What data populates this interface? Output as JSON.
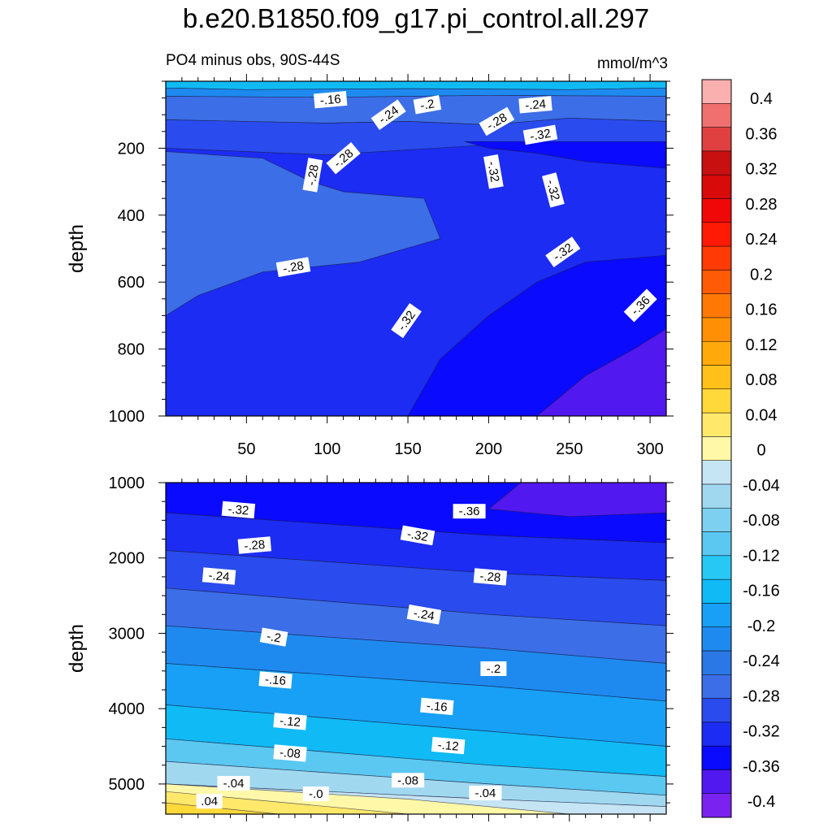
{
  "title": "b.e20.B1850.f09_g17.pi_control.all.297",
  "subtitle": "PO4 minus obs, 90S-44S",
  "units": "mmol/m^3",
  "colorbar": {
    "levels": [
      -0.4,
      -0.36,
      -0.32,
      -0.28,
      -0.24,
      -0.2,
      -0.16,
      -0.12,
      -0.08,
      -0.04,
      0,
      0.04,
      0.08,
      0.12,
      0.16,
      0.2,
      0.24,
      0.28,
      0.32,
      0.36,
      0.4
    ],
    "tick_labels": [
      "-0.4",
      "-0.36",
      "-0.32",
      "-0.28",
      "-0.24",
      "-0.2",
      "-0.16",
      "-0.12",
      "-0.08",
      "-0.04",
      "0",
      "0.04",
      "0.08",
      "0.12",
      "0.16",
      "0.2",
      "0.24",
      "0.28",
      "0.32",
      "0.36",
      "0.4"
    ],
    "colors": [
      "#7a22f0",
      "#5218f0",
      "#0a0aff",
      "#1c2cf2",
      "#2a4bed",
      "#3c6ee8",
      "#2a78e6",
      "#1e8af0",
      "#17a0f5",
      "#10baf5",
      "#28c8f5",
      "#5ac8f0",
      "#7ed0f0",
      "#a0d8f0",
      "#c5e4f4",
      "#fff8a8",
      "#ffe86a",
      "#ffd83a",
      "#ffc01a",
      "#ffaa0a",
      "#ff9005",
      "#ff7805",
      "#ff5a05",
      "#ff3a05",
      "#ff1a05",
      "#f00808",
      "#d80a0a",
      "#c81010",
      "#e04040",
      "#f07070",
      "#fbb0b0"
    ]
  },
  "chart_data": [
    {
      "type": "heatmap",
      "panel": "upper",
      "xlabel": "",
      "ylabel": "depth",
      "xlim": [
        0,
        310
      ],
      "ylim": [
        1000,
        0
      ],
      "x_ticks": [
        50,
        100,
        150,
        200,
        250,
        300
      ],
      "x_tick_labels": [
        "50",
        "100",
        "150",
        "200",
        "250",
        "300"
      ],
      "y_ticks": [
        200,
        400,
        600,
        800,
        1000
      ],
      "y_tick_labels": [
        "200",
        "400",
        "600",
        "800",
        "1000"
      ],
      "regions": [
        {
          "level": -0.16,
          "color": "#10baf5",
          "poly": [
            [
              0,
              0
            ],
            [
              310,
              0
            ],
            [
              310,
              20
            ],
            [
              250,
              25
            ],
            [
              150,
              22
            ],
            [
              50,
              25
            ],
            [
              0,
              20
            ]
          ]
        },
        {
          "level": -0.2,
          "color": "#1e8af0",
          "poly": [
            [
              0,
              20
            ],
            [
              50,
              25
            ],
            [
              150,
              22
            ],
            [
              250,
              25
            ],
            [
              310,
              20
            ],
            [
              310,
              45
            ],
            [
              200,
              42
            ],
            [
              100,
              48
            ],
            [
              0,
              45
            ]
          ]
        },
        {
          "level": -0.24,
          "color": "#3c6ee8",
          "poly": [
            [
              0,
              45
            ],
            [
              100,
              48
            ],
            [
              200,
              42
            ],
            [
              310,
              45
            ],
            [
              310,
              120
            ],
            [
              250,
              110
            ],
            [
              200,
              130
            ],
            [
              150,
              120
            ],
            [
              100,
              125
            ],
            [
              0,
              115
            ]
          ]
        },
        {
          "level": -0.28,
          "color": "#2a4bed",
          "poly": [
            [
              0,
              115
            ],
            [
              100,
              125
            ],
            [
              150,
              120
            ],
            [
              200,
              130
            ],
            [
              250,
              110
            ],
            [
              310,
              120
            ],
            [
              310,
              1000
            ],
            [
              0,
              1000
            ]
          ]
        },
        {
          "level": -0.32,
          "color": "#1c2cf2",
          "poly": [
            [
              0,
              200
            ],
            [
              100,
              220
            ],
            [
              200,
              190
            ],
            [
              310,
              190
            ],
            [
              310,
              1000
            ],
            [
              0,
              1000
            ]
          ]
        },
        {
          "level": -0.32,
          "color": "#3c6ee8",
          "poly": [
            [
              0,
              210
            ],
            [
              60,
              230
            ],
            [
              90,
              300
            ],
            [
              110,
              330
            ],
            [
              160,
              350
            ],
            [
              170,
              470
            ],
            [
              120,
              540
            ],
            [
              60,
              570
            ],
            [
              20,
              640
            ],
            [
              0,
              700
            ]
          ]
        },
        {
          "level": -0.32,
          "color": "#0a0aff",
          "poly": [
            [
              150,
              1000
            ],
            [
              170,
              830
            ],
            [
              200,
              700
            ],
            [
              230,
              600
            ],
            [
              260,
              540
            ],
            [
              310,
              520
            ],
            [
              310,
              1000
            ]
          ]
        },
        {
          "level": -0.32,
          "color": "#0a0aff",
          "poly": [
            [
              185,
              180
            ],
            [
              200,
              200
            ],
            [
              230,
              215
            ],
            [
              260,
              240
            ],
            [
              310,
              260
            ],
            [
              310,
              180
            ]
          ]
        },
        {
          "level": -0.36,
          "color": "#5218f0",
          "poly": [
            [
              230,
              1000
            ],
            [
              260,
              880
            ],
            [
              290,
              800
            ],
            [
              310,
              740
            ],
            [
              310,
              1000
            ]
          ]
        }
      ],
      "contour_labels": [
        {
          "text": "-.16",
          "x": 102,
          "y": 55,
          "angle": -5
        },
        {
          "text": "-.24",
          "x": 138,
          "y": 100,
          "angle": -35
        },
        {
          "text": "-.2",
          "x": 162,
          "y": 70,
          "angle": -10
        },
        {
          "text": "-.28",
          "x": 205,
          "y": 120,
          "angle": -30
        },
        {
          "text": "-.24",
          "x": 229,
          "y": 70,
          "angle": -5
        },
        {
          "text": "-.28",
          "x": 110,
          "y": 230,
          "angle": -40
        },
        {
          "text": "-.32",
          "x": 232,
          "y": 160,
          "angle": -10
        },
        {
          "text": "-.28",
          "x": 91,
          "y": 280,
          "angle": -80
        },
        {
          "text": "-.32",
          "x": 203,
          "y": 270,
          "angle": 80
        },
        {
          "text": "-.32",
          "x": 240,
          "y": 325,
          "angle": 75
        },
        {
          "text": "-.28",
          "x": 79,
          "y": 555,
          "angle": -10
        },
        {
          "text": "-.32",
          "x": 246,
          "y": 510,
          "angle": -35
        },
        {
          "text": "-.32",
          "x": 149,
          "y": 715,
          "angle": -55
        },
        {
          "text": "-.36",
          "x": 294,
          "y": 670,
          "angle": -45
        }
      ]
    },
    {
      "type": "heatmap",
      "panel": "lower",
      "xlabel": "",
      "ylabel": "depth",
      "xlim": [
        0,
        310
      ],
      "ylim": [
        5400,
        1000
      ],
      "y_ticks": [
        1000,
        2000,
        3000,
        4000,
        5000
      ],
      "y_tick_labels": [
        "1000",
        "2000",
        "3000",
        "4000",
        "5000"
      ],
      "regions": [
        {
          "level": -0.36,
          "color": "#0a0aff",
          "poly": [
            [
              0,
              1000
            ],
            [
              310,
              1000
            ],
            [
              310,
              1800
            ],
            [
              200,
              1700
            ],
            [
              0,
              1400
            ]
          ]
        },
        {
          "level": -0.32,
          "color": "#1c2cf2",
          "poly": [
            [
              0,
              1400
            ],
            [
              200,
              1700
            ],
            [
              310,
              1800
            ],
            [
              310,
              2300
            ],
            [
              200,
              2200
            ],
            [
              0,
              1900
            ]
          ]
        },
        {
          "level": -0.28,
          "color": "#2a4bed",
          "poly": [
            [
              0,
              1900
            ],
            [
              200,
              2200
            ],
            [
              310,
              2300
            ],
            [
              310,
              2900
            ],
            [
              200,
              2750
            ],
            [
              0,
              2400
            ]
          ]
        },
        {
          "level": -0.24,
          "color": "#3c6ee8",
          "poly": [
            [
              0,
              2400
            ],
            [
              200,
              2750
            ],
            [
              310,
              2900
            ],
            [
              310,
              3400
            ],
            [
              200,
              3200
            ],
            [
              0,
              2900
            ]
          ]
        },
        {
          "level": -0.2,
          "color": "#1e8af0",
          "poly": [
            [
              0,
              2900
            ],
            [
              200,
              3200
            ],
            [
              310,
              3400
            ],
            [
              310,
              3900
            ],
            [
              200,
              3700
            ],
            [
              0,
              3400
            ]
          ]
        },
        {
          "level": -0.16,
          "color": "#17a0f5",
          "poly": [
            [
              0,
              3400
            ],
            [
              200,
              3700
            ],
            [
              310,
              3900
            ],
            [
              310,
              4500
            ],
            [
              200,
              4300
            ],
            [
              0,
              3950
            ]
          ]
        },
        {
          "level": -0.12,
          "color": "#10baf5",
          "poly": [
            [
              0,
              3950
            ],
            [
              200,
              4300
            ],
            [
              310,
              4500
            ],
            [
              310,
              4900
            ],
            [
              200,
              4750
            ],
            [
              0,
              4400
            ]
          ]
        },
        {
          "level": -0.08,
          "color": "#5ac8f0",
          "poly": [
            [
              0,
              4400
            ],
            [
              200,
              4750
            ],
            [
              310,
              4900
            ],
            [
              310,
              5150
            ],
            [
              200,
              5000
            ],
            [
              0,
              4700
            ]
          ]
        },
        {
          "level": -0.04,
          "color": "#a0d8f0",
          "poly": [
            [
              0,
              4700
            ],
            [
              200,
              5000
            ],
            [
              310,
              5150
            ],
            [
              310,
              5300
            ],
            [
              200,
              5200
            ],
            [
              0,
              5000
            ]
          ]
        },
        {
          "level": 0,
          "color": "#c5e4f4",
          "poly": [
            [
              0,
              5000
            ],
            [
              200,
              5200
            ],
            [
              310,
              5300
            ],
            [
              310,
              5400
            ],
            [
              0,
              5400
            ]
          ]
        },
        {
          "level": 0.04,
          "color": "#fff8a8",
          "poly": [
            [
              0,
              5000
            ],
            [
              150,
              5200
            ],
            [
              250,
              5400
            ],
            [
              0,
              5400
            ]
          ]
        },
        {
          "level": 0.08,
          "color": "#ffe86a",
          "poly": [
            [
              0,
              5100
            ],
            [
              100,
              5300
            ],
            [
              150,
              5400
            ],
            [
              0,
              5400
            ]
          ]
        },
        {
          "level": 0.12,
          "color": "#ffd83a",
          "poly": [
            [
              0,
              5250
            ],
            [
              70,
              5400
            ],
            [
              0,
              5400
            ]
          ]
        },
        {
          "level": -0.4,
          "color": "#5218f0",
          "poly": [
            [
              220,
              1000
            ],
            [
              310,
              1000
            ],
            [
              310,
              1400
            ],
            [
              250,
              1450
            ],
            [
              200,
              1350
            ]
          ]
        }
      ],
      "contour_labels": [
        {
          "text": "-.32",
          "x": 45,
          "y": 1360,
          "angle": 5
        },
        {
          "text": "-.36",
          "x": 188,
          "y": 1380,
          "angle": 0
        },
        {
          "text": "-.28",
          "x": 55,
          "y": 1830,
          "angle": -5
        },
        {
          "text": "-.32",
          "x": 156,
          "y": 1700,
          "angle": 10
        },
        {
          "text": "-.24",
          "x": 33,
          "y": 2240,
          "angle": 5
        },
        {
          "text": "-.28",
          "x": 201,
          "y": 2250,
          "angle": 5
        },
        {
          "text": "-.24",
          "x": 160,
          "y": 2750,
          "angle": 10
        },
        {
          "text": "-.2",
          "x": 67,
          "y": 3050,
          "angle": 10
        },
        {
          "text": "-.2",
          "x": 203,
          "y": 3470,
          "angle": 0
        },
        {
          "text": "-.16",
          "x": 68,
          "y": 3620,
          "angle": 5
        },
        {
          "text": "-.16",
          "x": 168,
          "y": 3970,
          "angle": 5
        },
        {
          "text": "-.12",
          "x": 77,
          "y": 4170,
          "angle": 5
        },
        {
          "text": "-.12",
          "x": 175,
          "y": 4490,
          "angle": 5
        },
        {
          "text": "-.08",
          "x": 77,
          "y": 4590,
          "angle": 5
        },
        {
          "text": "-.08",
          "x": 150,
          "y": 4950,
          "angle": 0
        },
        {
          "text": "-.04",
          "x": 42,
          "y": 4990,
          "angle": 0
        },
        {
          "text": "-.04",
          "x": 198,
          "y": 5120,
          "angle": 0
        },
        {
          "text": "-.0",
          "x": 93,
          "y": 5130,
          "angle": 0
        },
        {
          "text": ".04",
          "x": 27,
          "y": 5230,
          "angle": 0
        }
      ]
    }
  ]
}
